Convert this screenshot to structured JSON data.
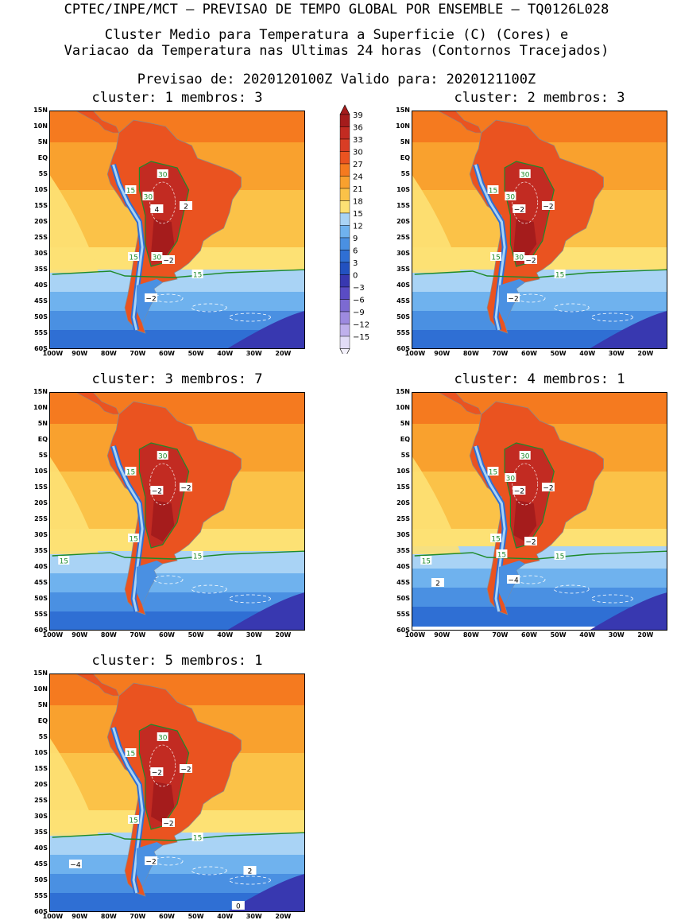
{
  "header": {
    "line1": "CPTEC/INPE/MCT – PREVISAO DE TEMPO GLOBAL POR ENSEMBLE – TQ0126L028",
    "line2": "Cluster Medio para Temperatura a Superficie (C) (Cores) e",
    "line3": "Variacao da Temperatura nas Ultimas 24 horas (Contornos Tracejados)",
    "line4": "Previsao de: 2020120100Z   Valido para: 2020121100Z"
  },
  "axes": {
    "lat_labels": [
      "15N",
      "10N",
      "5N",
      "EQ",
      "5S",
      "10S",
      "15S",
      "20S",
      "25S",
      "30S",
      "35S",
      "40S",
      "45S",
      "50S",
      "55S",
      "60S"
    ],
    "lon_labels": [
      "100W",
      "90W",
      "80W",
      "70W",
      "60W",
      "50W",
      "40W",
      "30W",
      "20W"
    ]
  },
  "colorbar": {
    "labels": [
      "39",
      "36",
      "33",
      "30",
      "27",
      "24",
      "21",
      "18",
      "15",
      "12",
      "9",
      "6",
      "3",
      "0",
      "−3",
      "−6",
      "−9",
      "−12",
      "−15"
    ],
    "colors": [
      "#a51c1c",
      "#c22b22",
      "#d93d25",
      "#ea5320",
      "#f57a1f",
      "#f9a12e",
      "#fbc248",
      "#fde174",
      "#a9d3f5",
      "#6fb2ee",
      "#4a90e2",
      "#2f6fd4",
      "#2251c0",
      "#3838b0",
      "#5a4cc4",
      "#7c6ad2",
      "#9d8ae0",
      "#bfb0ec",
      "#e2dcf7"
    ]
  },
  "clusters": [
    {
      "label": "cluster: 1   membros: 3",
      "labels_15": [
        "15",
        "15",
        "15"
      ],
      "labels_30": [
        "30",
        "30",
        "30"
      ],
      "labels_var": [
        "4",
        "2",
        "−2",
        "−2"
      ]
    },
    {
      "label": "cluster: 2   membros: 3",
      "labels_15": [
        "15",
        "15",
        "15"
      ],
      "labels_30": [
        "30",
        "30",
        "30"
      ],
      "labels_var": [
        "−2",
        "−2",
        "−2",
        "−2"
      ]
    },
    {
      "label": "cluster: 3   membros: 7",
      "labels_15": [
        "15",
        "15",
        "15",
        "15"
      ],
      "labels_30": [
        "30"
      ],
      "labels_var": [
        "−2",
        "−2"
      ]
    },
    {
      "label": "cluster: 4   membros: 1",
      "labels_15": [
        "15",
        "15",
        "15",
        "15",
        "15"
      ],
      "labels_30": [
        "30",
        "30"
      ],
      "labels_var": [
        "−2",
        "−2",
        "−2",
        "−4",
        "2"
      ]
    },
    {
      "label": "cluster: 5   membros: 1",
      "labels_15": [
        "15",
        "15",
        "15"
      ],
      "labels_30": [
        "30"
      ],
      "labels_var": [
        "−2",
        "−2",
        "−2",
        "−2",
        "−4",
        "2",
        "0"
      ]
    }
  ]
}
